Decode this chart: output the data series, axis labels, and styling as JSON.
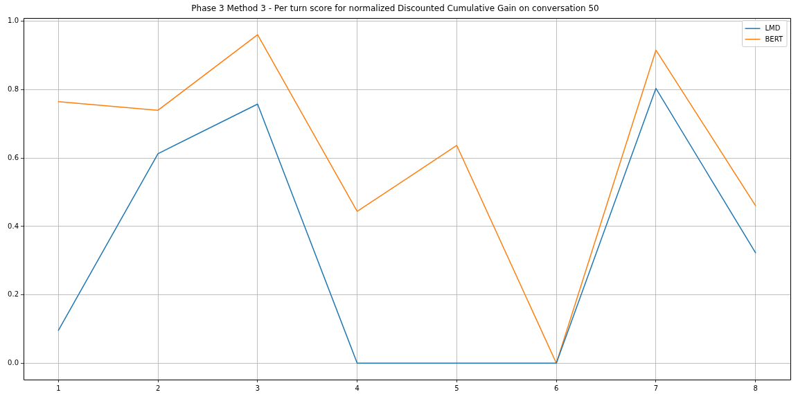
{
  "chart_data": {
    "type": "line",
    "title": "Phase 3 Method 3 - Per turn score for normalized Discounted Cumulative Gain on conversation 50",
    "x": [
      1,
      2,
      3,
      4,
      5,
      6,
      7,
      8
    ],
    "series": [
      {
        "name": "LMD",
        "color": "#1f77b4",
        "values": [
          0.096,
          0.613,
          0.758,
          0,
          0,
          0,
          0.804,
          0.323
        ]
      },
      {
        "name": "BERT",
        "color": "#ff7f0e",
        "values": [
          0.765,
          0.74,
          0.961,
          0.444,
          0.637,
          0,
          0.916,
          0.461
        ]
      }
    ],
    "xlim": [
      0.65,
      8.35
    ],
    "xticks": [
      1,
      2,
      3,
      4,
      5,
      6,
      7,
      8
    ],
    "ylim": [
      -0.048,
      1.009
    ],
    "yticks": [
      {
        "value": 0,
        "label": "0.0"
      },
      0.2,
      0.4,
      0.6,
      0.8,
      {
        "value": 1,
        "label": "1.0"
      }
    ],
    "grid": true,
    "legend": "top right"
  }
}
